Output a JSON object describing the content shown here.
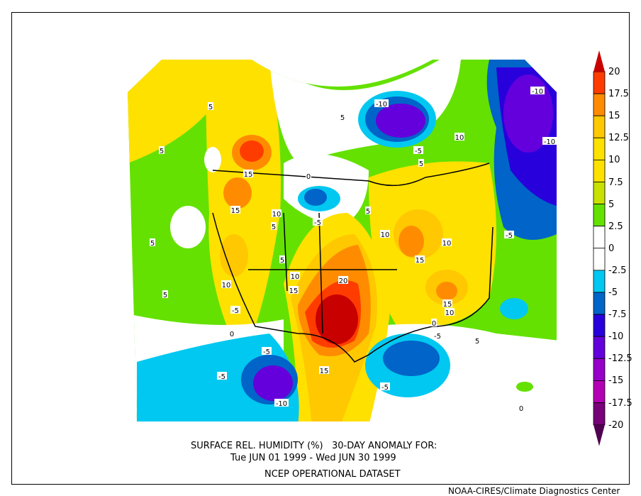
{
  "title": {
    "line1": "SURFACE REL. HUMIDITY (%)   30-DAY ANOMALY FOR:",
    "line2": "Tue JUN 01 1999 - Wed JUN 30 1999",
    "line3": "NCEP OPERATIONAL DATASET"
  },
  "credit": "NOAA-CIRES/Climate Diagnostics Center",
  "colorbar": {
    "labels": [
      "20",
      "17.5",
      "15",
      "12.5",
      "10",
      "7.5",
      "5",
      "2.5",
      "0",
      "-2.5",
      "-5",
      "-7.5",
      "-10",
      "-12.5",
      "-15",
      "-17.5",
      "-20"
    ],
    "colors": [
      "#ff3c00",
      "#ff8c00",
      "#ffc800",
      "#ffe100",
      "#ffe100",
      "#c8e100",
      "#64e100",
      "#ffffff",
      "#ffffff",
      "#00c8f0",
      "#0064c8",
      "#2800dc",
      "#6400dc",
      "#9600c8",
      "#b400b4",
      "#780078"
    ],
    "over_color": "#c80000",
    "under_color": "#500050"
  },
  "map": {
    "contour_labels": [
      "5",
      "5",
      "5",
      "15",
      "0",
      "-10",
      "-5",
      "5",
      "10",
      "-10",
      "-10",
      "15",
      "10",
      "5",
      "-5",
      "5",
      "10",
      "5",
      "-5",
      "10",
      "15",
      "5",
      "10",
      "15",
      "20",
      "10",
      "5",
      "15",
      "10",
      "-5",
      "0",
      "-5",
      "5",
      "-5",
      "15",
      "-5",
      "-5",
      "-10",
      "0",
      "0"
    ]
  }
}
